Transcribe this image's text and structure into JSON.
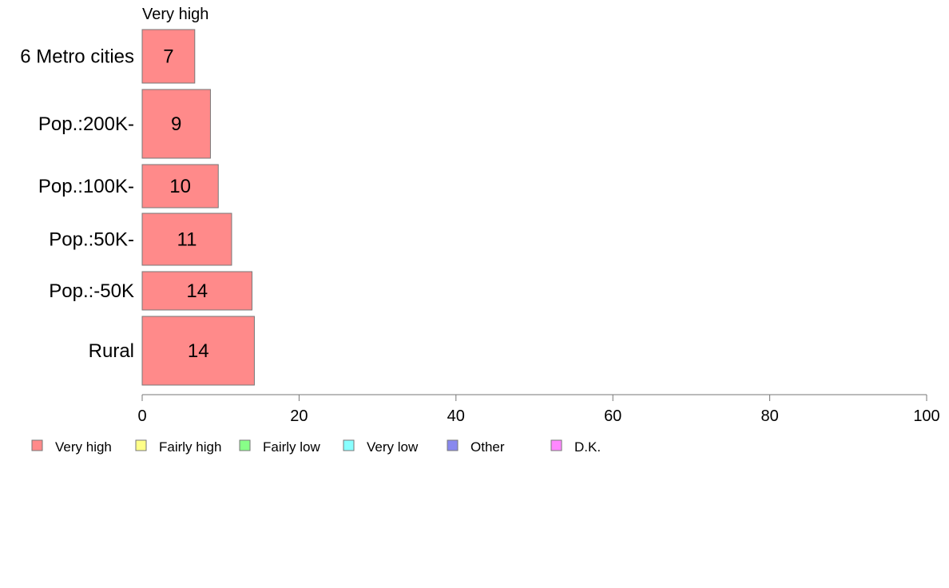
{
  "chart_data": {
    "type": "bar",
    "orientation": "horizontal",
    "series_header": "Very high",
    "categories": [
      "6 Metro cities",
      "Pop.:200K-",
      "Pop.:100K-",
      "Pop.:50K-",
      "Pop.:-50K",
      "Rural"
    ],
    "series": [
      {
        "name": "Very high",
        "values": [
          6.7,
          8.7,
          9.7,
          11.4,
          14.0,
          14.3
        ],
        "labels": [
          "7",
          "9",
          "10",
          "11",
          "14",
          "14"
        ],
        "color": "#ff8a8a"
      }
    ],
    "xlim": [
      0,
      100
    ],
    "xticks": [
      "0",
      "20",
      "40",
      "60",
      "80",
      "100"
    ],
    "legend": [
      {
        "label": "Very high",
        "color": "#ff8a8a"
      },
      {
        "label": "Fairly high",
        "color": "#ffff88"
      },
      {
        "label": "Fairly low",
        "color": "#88ff88"
      },
      {
        "label": "Very low",
        "color": "#88ffff"
      },
      {
        "label": "Other",
        "color": "#8888ee"
      },
      {
        "label": "D.K.",
        "color": "#ff88ff"
      }
    ],
    "legend_position": "bottom-left"
  }
}
